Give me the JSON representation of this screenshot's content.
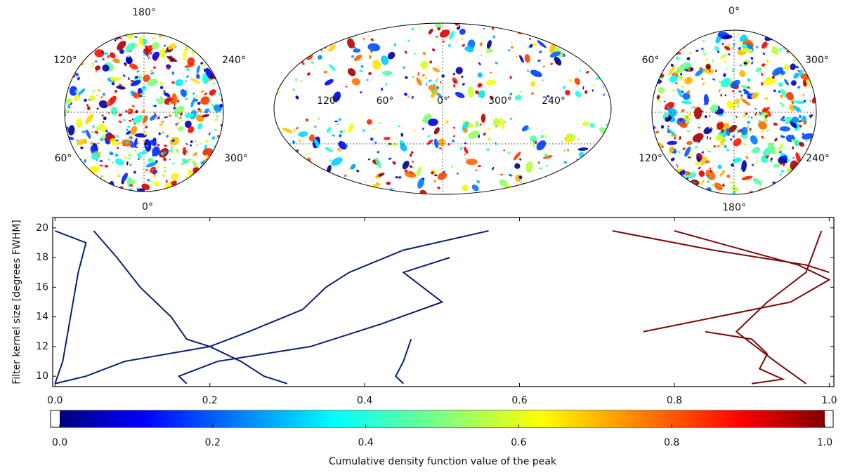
{
  "maps": [
    {
      "labels": [
        "180°",
        "120°",
        "240°",
        "60°",
        "300°",
        "0°"
      ]
    },
    {
      "labels": [
        "120°",
        "60°",
        "0°",
        "300°",
        "240°"
      ]
    },
    {
      "labels": [
        "0°",
        "60°",
        "300°",
        "120°",
        "240°",
        "180°"
      ]
    }
  ],
  "chart_data": {
    "type": "line",
    "ylabel": "Filter kernel size [degrees FWHM]",
    "xlim": [
      -0.003,
      1.006
    ],
    "ylim": [
      9.3,
      20.7
    ],
    "xticks": [
      {
        "value": 0,
        "label": "0.0"
      },
      0.2,
      0.4,
      0.6,
      0.8,
      {
        "value": 1,
        "label": "1.0"
      }
    ],
    "yticks": [
      10,
      12,
      14,
      16,
      18,
      20
    ],
    "series": [
      {
        "color": "#0a1f6e",
        "x": [
          0.05,
          0.08,
          0.11,
          0.15,
          0.17,
          0.2,
          0.24,
          0.27,
          0.3
        ],
        "y": [
          19.8,
          18,
          16,
          14,
          12.5,
          12,
          11,
          10,
          9.5
        ]
      },
      {
        "color": "#0a1f6e",
        "x": [
          0.56,
          0.45,
          0.38,
          0.35,
          0.32,
          0.25,
          0.2,
          0.09,
          0.04,
          0.0
        ],
        "y": [
          19.8,
          18.5,
          17,
          16,
          14.5,
          13,
          12,
          11,
          10,
          9.5
        ]
      },
      {
        "color": "#0a1f6e",
        "x": [
          0.51,
          0.45,
          0.5,
          0.42,
          0.33,
          0.21,
          0.16,
          0.17
        ],
        "y": [
          18,
          17,
          15,
          13.5,
          12,
          11,
          10,
          9.5
        ]
      },
      {
        "color": "#0a1f6e",
        "x": [
          0.0,
          0.04,
          0.03,
          0.02,
          0.01,
          0.0
        ],
        "y": [
          19.8,
          19,
          17,
          14,
          11,
          9.5
        ]
      },
      {
        "color": "#0a1f6e",
        "x": [
          0.46,
          0.45,
          0.44,
          0.45
        ],
        "y": [
          12.5,
          11,
          10,
          9.5
        ]
      },
      {
        "color": "#7a0a0a",
        "x": [
          0.72,
          0.85,
          0.97,
          1.0
        ],
        "y": [
          19.8,
          18.5,
          17.5,
          17
        ]
      },
      {
        "color": "#7a0a0a",
        "x": [
          0.99,
          0.97,
          0.92,
          0.88,
          0.93,
          0.97
        ],
        "y": [
          19.8,
          17,
          15,
          13,
          11,
          9.5
        ]
      },
      {
        "color": "#7a0a0a",
        "x": [
          0.76,
          0.95,
          1.0,
          0.96,
          0.8
        ],
        "y": [
          13,
          15,
          16.5,
          17.5,
          19.8
        ]
      },
      {
        "color": "#7a0a0a",
        "x": [
          0.84,
          0.9,
          0.92,
          0.91,
          0.94,
          0.9
        ],
        "y": [
          13,
          12.5,
          11.5,
          10.5,
          9.8,
          9.5
        ]
      }
    ]
  },
  "colorbar": {
    "ticks": [
      {
        "value": 0,
        "label": "0.0"
      },
      0.2,
      0.4,
      0.6,
      0.8,
      {
        "value": 1,
        "label": "1.0"
      }
    ],
    "label": "Cumulative density function value of the peak"
  }
}
